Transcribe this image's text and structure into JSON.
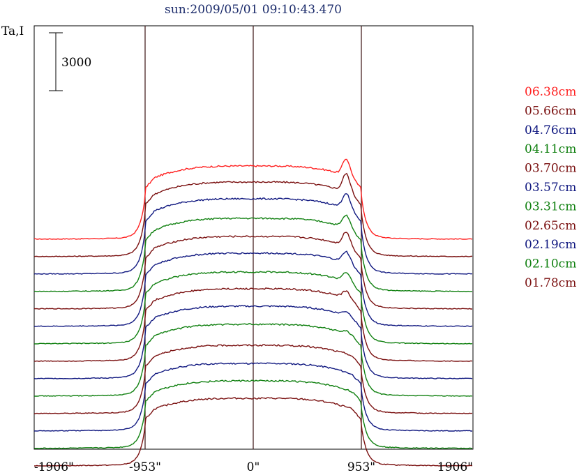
{
  "chart_data": {
    "type": "line",
    "title": "sun:2009/05/01 09:10:43.470",
    "ylabel": "Ta,I",
    "scale_bar_label": "3000",
    "x_tick_labels": [
      "-1906\"",
      "-953\"",
      "0\"",
      "953\"",
      "1906\""
    ],
    "x_ticks": [
      -1906,
      -953,
      0,
      953,
      1906
    ],
    "xlim": [
      -1906,
      1906
    ],
    "vertical_lines_at": [
      -953,
      0,
      953
    ],
    "grid": false,
    "legend_position": "right",
    "series": [
      {
        "name": "06.38cm",
        "color": "#ff2020",
        "offset": 27500,
        "peak": 10500,
        "limb_bump": 2400
      },
      {
        "name": "05.66cm",
        "color": "#7a1010",
        "offset": 25000,
        "peak": 10700,
        "limb_bump": 2600
      },
      {
        "name": "04.76cm",
        "color": "#101880",
        "offset": 22500,
        "peak": 10800,
        "limb_bump": 2200
      },
      {
        "name": "04.11cm",
        "color": "#108010",
        "offset": 20000,
        "peak": 10500,
        "limb_bump": 1800
      },
      {
        "name": "03.70cm",
        "color": "#7a1010",
        "offset": 17500,
        "peak": 10400,
        "limb_bump": 2000
      },
      {
        "name": "03.57cm",
        "color": "#101880",
        "offset": 15000,
        "peak": 10500,
        "limb_bump": 1600
      },
      {
        "name": "03.31cm",
        "color": "#108010",
        "offset": 12500,
        "peak": 10300,
        "limb_bump": 1300
      },
      {
        "name": "02.65cm",
        "color": "#7a1010",
        "offset": 10000,
        "peak": 10400,
        "limb_bump": 1000
      },
      {
        "name": "02.19cm",
        "color": "#101880",
        "offset": 7500,
        "peak": 10400,
        "limb_bump": 600
      },
      {
        "name": "02.10cm",
        "color": "#108010",
        "offset": 5000,
        "peak": 10300,
        "limb_bump": 400
      },
      {
        "name": "01.78cm",
        "color": "#7a1010",
        "offset": 2500,
        "peak": 9800,
        "limb_bump": 100
      }
    ],
    "extra_unlabeled_series_colors": [
      "#101880",
      "#108010",
      "#7a1010"
    ],
    "extra_unlabeled_offsets": [
      0,
      -2500,
      -5000
    ]
  }
}
